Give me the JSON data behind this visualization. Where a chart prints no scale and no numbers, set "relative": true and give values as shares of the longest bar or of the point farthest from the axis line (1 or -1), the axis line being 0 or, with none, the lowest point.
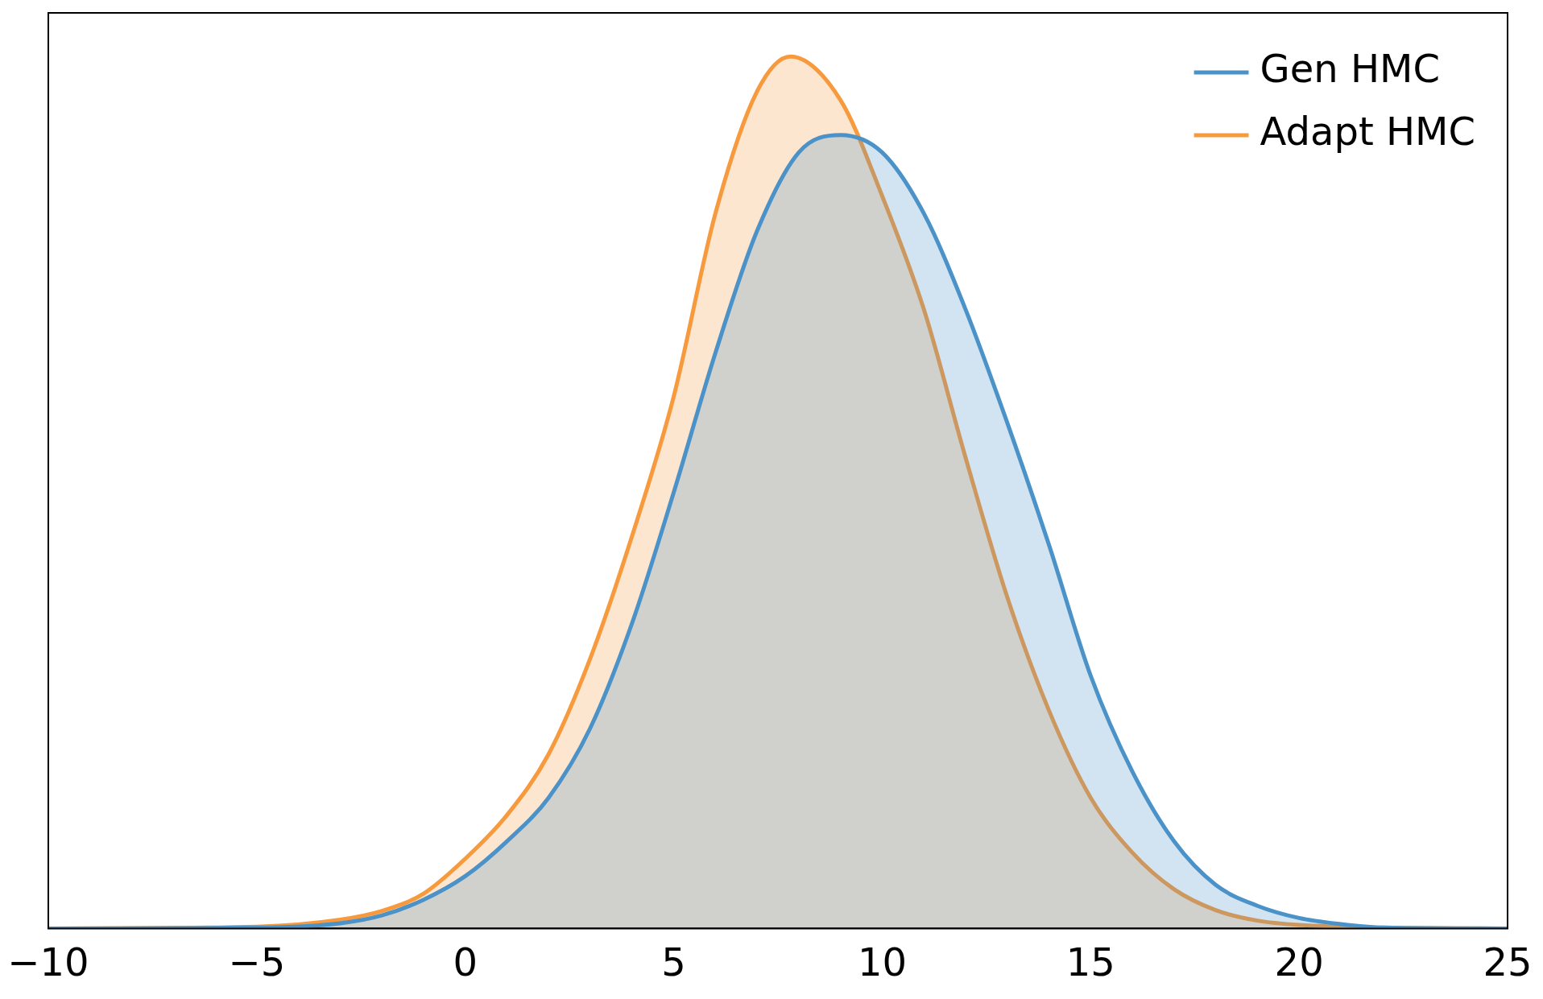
{
  "chart_data": {
    "type": "area",
    "relative": true,
    "xlim": [
      -10,
      25
    ],
    "xticks": [
      {
        "value": -10,
        "label": "−10"
      },
      {
        "value": -5,
        "label": "−5"
      },
      0,
      5,
      10,
      15,
      20,
      25
    ],
    "legend": "top right",
    "grid": false,
    "series": [
      {
        "name": "Gen HMC",
        "color": "#4a92c7",
        "x": [
          -10,
          -5,
          -3,
          -2,
          -1,
          0,
          1,
          2,
          3,
          4,
          5,
          6,
          7,
          8,
          9,
          10,
          11,
          12,
          13,
          14,
          15,
          16,
          17,
          18,
          19,
          20,
          21,
          22,
          25
        ],
        "values": [
          0,
          0.001,
          0.006,
          0.015,
          0.033,
          0.06,
          0.1,
          0.15,
          0.23,
          0.35,
          0.5,
          0.66,
          0.8,
          0.89,
          0.91,
          0.89,
          0.82,
          0.71,
          0.58,
          0.44,
          0.29,
          0.18,
          0.1,
          0.05,
          0.026,
          0.012,
          0.005,
          0.001,
          0
        ]
      },
      {
        "name": "Adapt HMC",
        "color": "#f79a3e",
        "x": [
          -10,
          -5,
          -3,
          -2,
          -1,
          0,
          1,
          2,
          3,
          4,
          5,
          6,
          7,
          7.8,
          9,
          10,
          11,
          12,
          13,
          14,
          15,
          16,
          17,
          18,
          19,
          20,
          22,
          25
        ],
        "values": [
          0,
          0.002,
          0.01,
          0.02,
          0.04,
          0.08,
          0.13,
          0.2,
          0.31,
          0.45,
          0.61,
          0.82,
          0.96,
          1,
          0.95,
          0.84,
          0.71,
          0.54,
          0.38,
          0.25,
          0.15,
          0.087,
          0.045,
          0.021,
          0.009,
          0.004,
          0.001,
          0
        ]
      }
    ]
  }
}
